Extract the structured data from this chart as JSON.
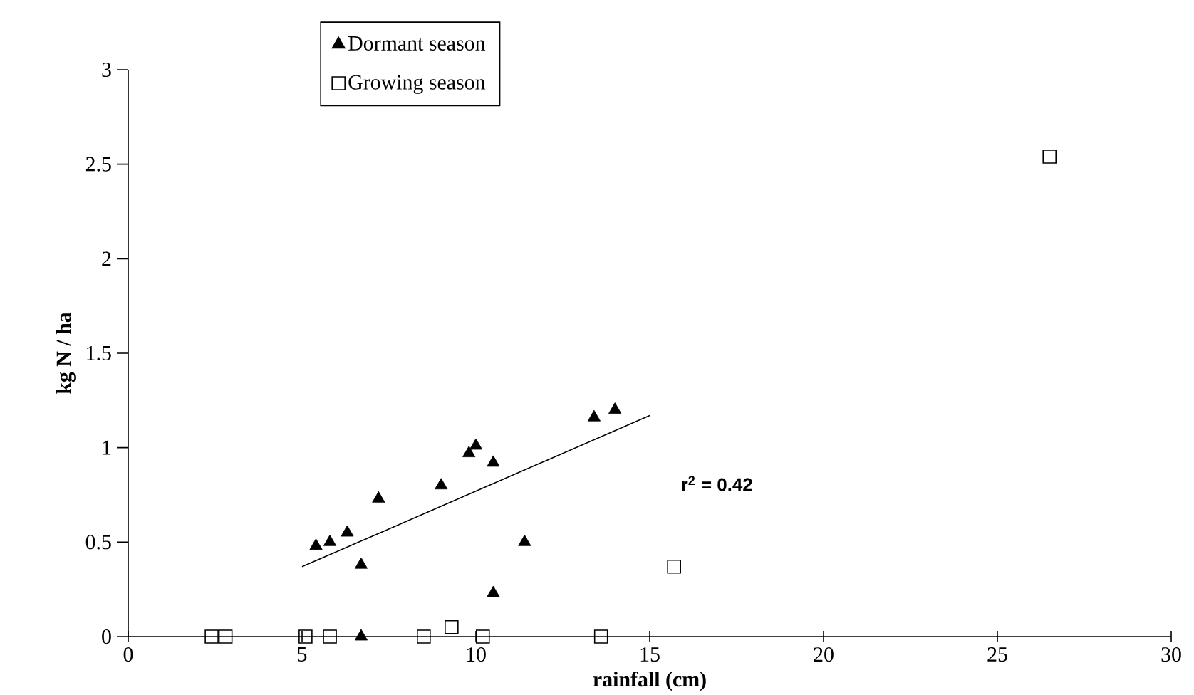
{
  "chart_data": {
    "type": "scatter",
    "xlabel": "rainfall (cm)",
    "ylabel": "kg N / ha",
    "xlim": [
      0,
      30
    ],
    "xticks": [
      0,
      5,
      10,
      15,
      20,
      25,
      30
    ],
    "ylim": [
      0,
      3
    ],
    "yticks": [
      0,
      0.5,
      1,
      1.5,
      2,
      2.5,
      3
    ],
    "grid": false,
    "legend": "top left",
    "annotations": [
      "r$^{2}$ = 0.42"
    ],
    "series": [
      {
        "name": "Dormant season",
        "color": "#000000",
        "marker": "triangle",
        "x": [
          5.4,
          5.8,
          6.3,
          6.7,
          6.7,
          7.2,
          9.0,
          9.8,
          10.0,
          10.5,
          10.5,
          11.4,
          13.4,
          14.0
        ],
        "values": [
          0.48,
          0.5,
          0.55,
          0.38,
          0.0,
          0.73,
          0.8,
          0.97,
          1.01,
          0.92,
          0.23,
          0.5,
          1.16,
          1.2
        ]
      },
      {
        "name": "Growing season",
        "color": "#000000",
        "marker": "square",
        "x": [
          2.4,
          2.8,
          5.1,
          5.8,
          8.5,
          9.3,
          10.2,
          13.6,
          15.7,
          26.5
        ],
        "values": [
          0,
          0,
          0,
          0,
          0,
          0.05,
          0,
          0,
          0.37,
          2.54
        ]
      },
      {
        "type": "line",
        "color": "#000000",
        "marker": "none",
        "line_style": "solid",
        "x": [
          5,
          15
        ],
        "values": [
          0.37,
          1.17
        ]
      }
    ]
  }
}
